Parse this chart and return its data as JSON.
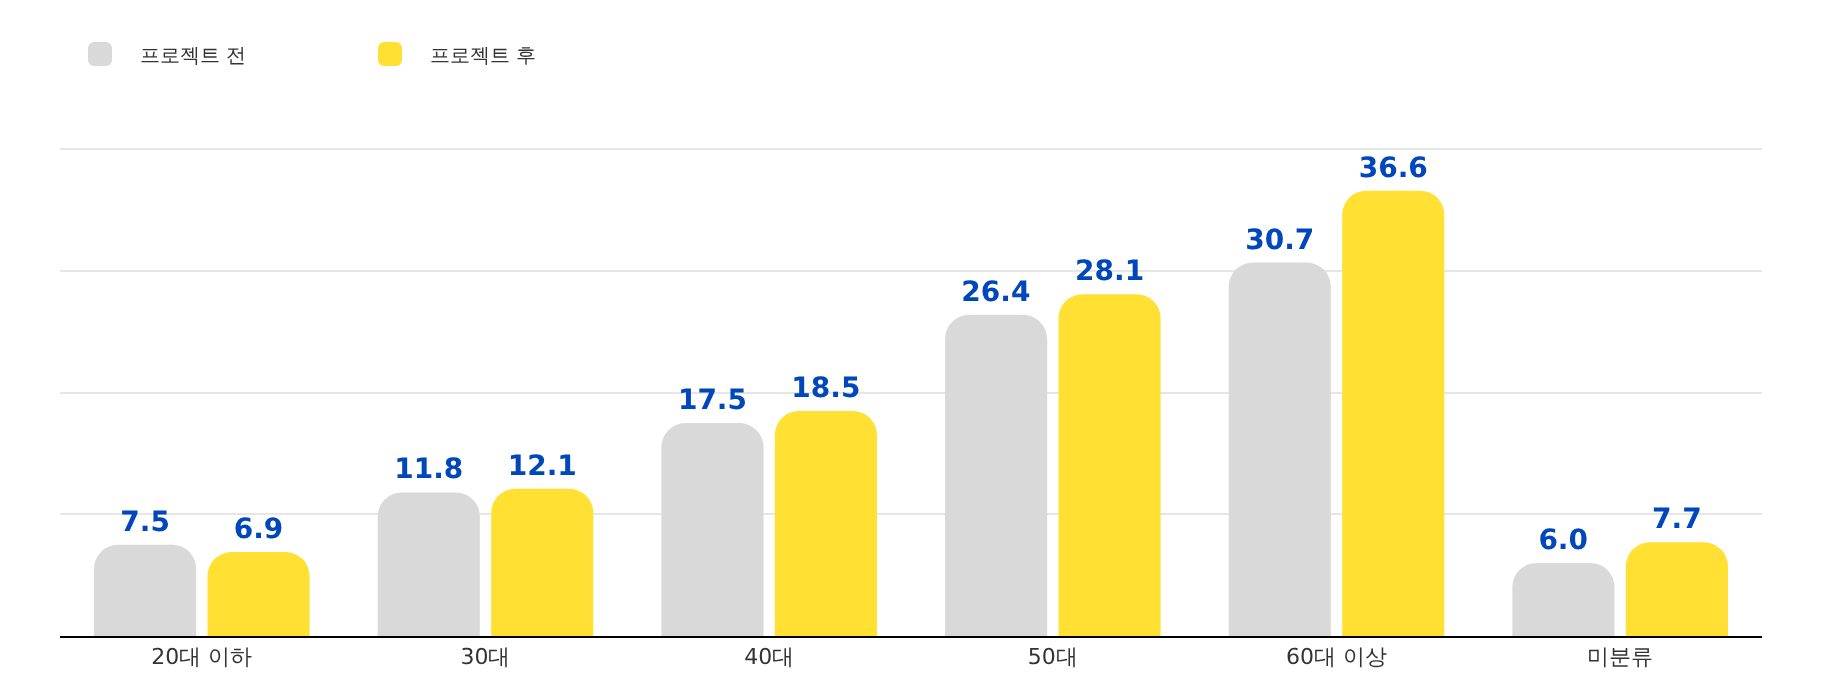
{
  "chart_data": {
    "type": "bar",
    "categories": [
      "20대 이하",
      "30대",
      "40대",
      "50대",
      "60대 이상",
      "미분류"
    ],
    "series": [
      {
        "name": "프로젝트 전",
        "color": "#d9d9d9",
        "values": [
          7.5,
          11.8,
          17.5,
          26.4,
          30.7,
          6.0
        ],
        "value_labels": [
          "7.5",
          "11.8",
          "17.5",
          "26.4",
          "30.7",
          "6.0"
        ]
      },
      {
        "name": "프로젝트 후",
        "color": "#ffe033",
        "values": [
          6.9,
          12.1,
          18.5,
          28.1,
          36.6,
          7.7
        ],
        "value_labels": [
          "6.9",
          "12.1",
          "18.5",
          "28.1",
          "36.6",
          "7.7"
        ]
      }
    ],
    "grid": "y",
    "legend": "top left",
    "tick_labels": "x"
  }
}
